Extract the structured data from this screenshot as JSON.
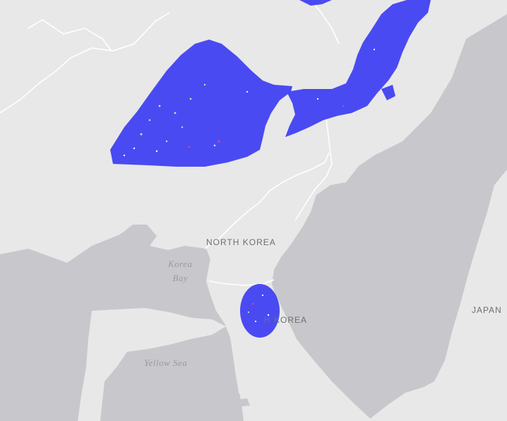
{
  "map": {
    "labels": {
      "north_korea": "NORTH KOREA",
      "south_korea_partial": "H KOREA",
      "japan_partial": "JAPAN",
      "korea_bay_line1": "Korea",
      "korea_bay_line2": "Bay",
      "yellow_sea": "Yellow Sea"
    },
    "colors": {
      "land": "#e8e8e8",
      "water": "#c8c8cc",
      "border": "#ffffff",
      "overlay": "#4a4af2",
      "overlay_speckle_warm": "#c84a9a",
      "overlay_speckle_light": "#d8dca8"
    }
  }
}
